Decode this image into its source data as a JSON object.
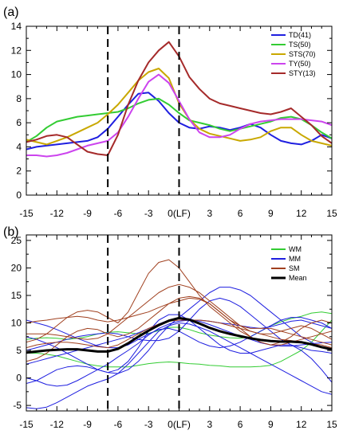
{
  "chart_data": [
    {
      "type": "line",
      "panel_label": "(a)",
      "x": [
        -15,
        -14,
        -13,
        -12,
        -11,
        -10,
        -9,
        -8,
        -7,
        -6,
        -5,
        -4,
        -3,
        -2,
        -1,
        0,
        1,
        2,
        3,
        4,
        5,
        6,
        7,
        8,
        9,
        10,
        11,
        12,
        13,
        14,
        15
      ],
      "xticks": [
        -15,
        -12,
        -9,
        -6,
        -3,
        0,
        3,
        6,
        9,
        12,
        15
      ],
      "xtick_labels": [
        "-15",
        "-12",
        "-9",
        "-6",
        "-3",
        "0(LF)",
        "3",
        "6",
        "9",
        "12",
        "15"
      ],
      "xlim": [
        -15,
        15
      ],
      "ylim": [
        0,
        14
      ],
      "yticks": [
        0,
        2,
        4,
        6,
        8,
        10,
        12,
        14
      ],
      "ytick_labels": [
        "0",
        "2",
        "4",
        "6",
        "8",
        "10",
        "12",
        "14"
      ],
      "vlines": [
        -7,
        0
      ],
      "legend_position": "top-right",
      "series": [
        {
          "name": "TD(41)",
          "color": "#1f1fe0",
          "width": 2,
          "values": [
            3.8,
            4.0,
            4.1,
            4.2,
            4.3,
            4.4,
            4.5,
            4.8,
            5.5,
            6.5,
            7.5,
            8.4,
            8.5,
            7.8,
            6.8,
            6.0,
            5.6,
            5.5,
            5.7,
            5.6,
            5.4,
            5.6,
            5.9,
            5.6,
            5.0,
            4.5,
            4.3,
            4.2,
            4.5,
            5.0,
            4.7
          ]
        },
        {
          "name": "TS(50)",
          "color": "#33cc33",
          "width": 2,
          "values": [
            4.4,
            4.9,
            5.6,
            6.1,
            6.3,
            6.5,
            6.6,
            6.7,
            6.8,
            6.9,
            7.2,
            7.6,
            7.9,
            8.0,
            7.5,
            6.8,
            6.2,
            6.0,
            5.8,
            5.5,
            5.3,
            5.5,
            5.7,
            5.9,
            6.1,
            6.4,
            6.5,
            6.3,
            5.8,
            5.2,
            4.7
          ]
        },
        {
          "name": "STS(70)",
          "color": "#c9a800",
          "width": 2,
          "values": [
            4.6,
            4.4,
            4.2,
            4.5,
            4.8,
            5.2,
            5.6,
            6.0,
            6.7,
            7.5,
            8.5,
            9.5,
            10.2,
            10.5,
            9.7,
            7.6,
            6.3,
            5.5,
            5.1,
            4.9,
            4.7,
            4.5,
            4.6,
            4.8,
            5.3,
            5.6,
            5.6,
            5.0,
            4.5,
            4.3,
            4.1
          ]
        },
        {
          "name": "TY(50)",
          "color": "#cc44ee",
          "width": 2,
          "values": [
            3.3,
            3.3,
            3.2,
            3.3,
            3.5,
            3.8,
            4.1,
            4.3,
            4.5,
            5.2,
            6.5,
            8.0,
            9.4,
            10.0,
            9.3,
            7.8,
            6.3,
            5.2,
            4.8,
            4.8,
            5.0,
            5.5,
            5.9,
            6.1,
            6.2,
            6.3,
            6.3,
            6.3,
            6.2,
            6.1,
            5.8
          ]
        },
        {
          "name": "STY(13)",
          "color": "#a52a2a",
          "width": 2,
          "values": [
            4.4,
            4.6,
            4.9,
            5.0,
            4.8,
            4.2,
            3.6,
            3.4,
            3.3,
            5.0,
            7.5,
            9.5,
            11.0,
            12.0,
            12.7,
            11.5,
            9.8,
            8.8,
            8.0,
            7.6,
            7.4,
            7.2,
            7.0,
            6.8,
            6.7,
            6.9,
            7.2,
            6.5,
            5.8,
            4.9,
            4.3
          ]
        }
      ]
    },
    {
      "type": "line",
      "panel_label": "(b)",
      "x": [
        -15,
        -14,
        -13,
        -12,
        -11,
        -10,
        -9,
        -8,
        -7,
        -6,
        -5,
        -4,
        -3,
        -2,
        -1,
        0,
        1,
        2,
        3,
        4,
        5,
        6,
        7,
        8,
        9,
        10,
        11,
        12,
        13,
        14,
        15
      ],
      "xticks": [
        -15,
        -12,
        -9,
        -6,
        -3,
        0,
        3,
        6,
        9,
        12,
        15
      ],
      "xtick_labels": [
        "-15",
        "-12",
        "-9",
        "-6",
        "-3",
        "0(LF)",
        "3",
        "6",
        "9",
        "12",
        "15"
      ],
      "xlim": [
        -15,
        15
      ],
      "ylim": [
        -6,
        26
      ],
      "yticks": [
        -5,
        0,
        5,
        10,
        15,
        20,
        25
      ],
      "ytick_labels": [
        "-5",
        "0",
        "5",
        "10",
        "15",
        "20",
        "25"
      ],
      "vlines": [
        -7,
        0
      ],
      "legend_position": "top-right",
      "legend": [
        {
          "name": "WM",
          "color": "#33cc33"
        },
        {
          "name": "MM",
          "color": "#1f1fe0"
        },
        {
          "name": "SM",
          "color": "#a0401f"
        },
        {
          "name": "Mean",
          "color": "#000000"
        }
      ],
      "series": [
        {
          "group": "WM",
          "color": "#33cc33",
          "width": 1,
          "values": [
            4.5,
            4.5,
            4.3,
            4.0,
            3.5,
            3.0,
            2.5,
            2.2,
            2.0,
            2.0,
            2.0,
            2.3,
            2.6,
            2.8,
            2.9,
            2.8,
            2.6,
            2.5,
            2.3,
            2.2,
            2.0,
            2.0,
            2.0,
            2.1,
            2.3,
            3.0,
            4.0,
            5.0,
            6.5,
            8.5,
            10.5
          ]
        },
        {
          "group": "WM",
          "color": "#33cc33",
          "width": 1,
          "values": [
            7.0,
            7.2,
            7.3,
            7.2,
            7.0,
            7.2,
            7.5,
            8.0,
            8.3,
            8.4,
            8.2,
            8.0,
            8.1,
            8.6,
            9.2,
            9.2,
            8.8,
            8.2,
            7.8,
            7.5,
            7.3,
            7.2,
            7.5,
            8.5,
            9.5,
            10.2,
            10.8,
            11.2,
            11.8,
            12.0,
            11.7
          ]
        },
        {
          "group": "MM",
          "color": "#1f1fe0",
          "width": 1,
          "values": [
            -5.4,
            -5.6,
            -5.3,
            -4.5,
            -3.5,
            -2.5,
            -1.5,
            -0.8,
            -0.2,
            0.8,
            2.5,
            4.5,
            6.5,
            8.5,
            9.5,
            10.0,
            9.8,
            9.2,
            8.5,
            7.5,
            6.5,
            5.5,
            4.5,
            3.5,
            2.5,
            1.5,
            0.5,
            -0.5,
            -1.5,
            -2.5,
            -3.0
          ]
        },
        {
          "group": "MM",
          "color": "#1f1fe0",
          "width": 1,
          "values": [
            0.0,
            -0.5,
            -1.2,
            -1.5,
            -1.3,
            -0.5,
            0.5,
            1.5,
            2.5,
            3.8,
            5.0,
            6.3,
            7.8,
            9.0,
            9.8,
            10.3,
            10.5,
            10.5,
            10.3,
            10.0,
            9.8,
            9.5,
            9.2,
            9.0,
            9.3,
            9.8,
            10.3,
            10.5,
            10.0,
            9.5,
            9.0
          ]
        },
        {
          "group": "MM",
          "color": "#1f1fe0",
          "width": 1,
          "values": [
            7.5,
            7.0,
            6.3,
            5.5,
            4.5,
            3.5,
            2.5,
            1.5,
            1.0,
            0.8,
            1.5,
            3.0,
            5.0,
            7.5,
            9.5,
            11.0,
            12.5,
            14.0,
            15.5,
            16.5,
            16.5,
            16.0,
            15.0,
            13.5,
            12.0,
            10.5,
            9.0,
            7.5,
            6.5,
            5.5,
            5.0
          ]
        },
        {
          "group": "MM",
          "color": "#1f1fe0",
          "width": 1,
          "values": [
            2.5,
            3.0,
            3.5,
            4.0,
            4.5,
            5.0,
            5.5,
            6.0,
            6.5,
            7.0,
            7.5,
            8.2,
            9.0,
            9.8,
            10.5,
            10.8,
            10.7,
            10.3,
            9.7,
            9.0,
            8.3,
            7.6,
            7.0,
            6.4,
            6.0,
            5.8,
            5.8,
            6.0,
            6.2,
            6.4,
            6.5
          ]
        },
        {
          "group": "MM",
          "color": "#1f1fe0",
          "width": 1,
          "values": [
            -1.0,
            -0.5,
            0.5,
            1.5,
            2.0,
            2.2,
            2.0,
            1.5,
            1.0,
            1.5,
            3.0,
            5.5,
            8.5,
            10.5,
            11.5,
            11.5,
            10.5,
            9.0,
            7.5,
            6.0,
            5.0,
            4.5,
            4.5,
            5.0,
            5.5,
            6.0,
            6.0,
            5.0,
            3.5,
            1.5,
            -0.8
          ]
        },
        {
          "group": "MM",
          "color": "#1f1fe0",
          "width": 1,
          "values": [
            5.0,
            5.5,
            6.0,
            6.5,
            7.0,
            7.5,
            7.8,
            8.0,
            8.2,
            8.0,
            7.5,
            7.0,
            6.8,
            6.8,
            7.2,
            8.5,
            10.5,
            12.5,
            14.0,
            14.5,
            14.0,
            13.0,
            11.5,
            10.0,
            8.5,
            7.0,
            6.0,
            5.5,
            5.0,
            4.8,
            4.5
          ]
        },
        {
          "group": "MM",
          "color": "#1f1fe0",
          "width": 1,
          "values": [
            10.5,
            10.0,
            9.5,
            8.8,
            8.0,
            7.2,
            6.5,
            5.8,
            5.5,
            5.5,
            6.0,
            7.0,
            8.0,
            8.8,
            9.0,
            8.5,
            7.5,
            6.5,
            5.8,
            5.5,
            5.8,
            6.5,
            7.5,
            8.5,
            9.5,
            10.5,
            11.0,
            11.0,
            10.5,
            10.0,
            9.0
          ]
        },
        {
          "group": "SM",
          "color": "#a0401f",
          "width": 1,
          "values": [
            6.5,
            7.0,
            8.0,
            9.5,
            11.0,
            12.0,
            12.3,
            12.0,
            11.0,
            10.0,
            12.0,
            15.5,
            19.0,
            21.0,
            21.5,
            20.0,
            17.5,
            15.0,
            13.0,
            11.5,
            10.0,
            8.5,
            7.5,
            6.5,
            6.0,
            6.0,
            6.5,
            7.0,
            7.5,
            8.0,
            8.5
          ]
        },
        {
          "group": "SM",
          "color": "#a0401f",
          "width": 1,
          "values": [
            8.0,
            8.0,
            8.0,
            7.8,
            7.5,
            7.2,
            7.0,
            7.2,
            8.0,
            9.5,
            11.0,
            12.5,
            14.0,
            15.5,
            16.5,
            17.0,
            16.5,
            15.5,
            14.0,
            12.5,
            11.0,
            9.5,
            8.5,
            8.0,
            8.0,
            8.5,
            9.0,
            9.5,
            9.0,
            8.0,
            7.0
          ]
        },
        {
          "group": "SM",
          "color": "#a0401f",
          "width": 1,
          "values": [
            10.0,
            10.3,
            10.5,
            10.8,
            11.0,
            11.2,
            11.0,
            10.5,
            10.2,
            10.5,
            11.0,
            11.5,
            12.0,
            12.8,
            13.5,
            14.0,
            14.5,
            14.3,
            13.5,
            12.0,
            10.5,
            9.0,
            7.5,
            6.5,
            6.0,
            6.5,
            7.5,
            9.0,
            10.0,
            10.5,
            10.0
          ]
        },
        {
          "group": "SM",
          "color": "#a0401f",
          "width": 1,
          "values": [
            3.0,
            3.5,
            4.5,
            6.0,
            7.5,
            8.5,
            9.0,
            8.8,
            8.0,
            7.5,
            8.0,
            9.0,
            10.5,
            12.0,
            13.5,
            14.5,
            14.8,
            14.5,
            13.5,
            12.0,
            10.5,
            9.5,
            9.0,
            9.0,
            9.0,
            8.5,
            8.0,
            7.5,
            7.0,
            6.5,
            6.0
          ]
        },
        {
          "group": "SM",
          "color": "#a0401f",
          "width": 1,
          "values": [
            5.5,
            6.0,
            6.3,
            6.5,
            6.5,
            6.3,
            6.0,
            5.7,
            5.5,
            6.0,
            7.0,
            8.0,
            9.0,
            9.8,
            10.3,
            10.5,
            10.5,
            10.5,
            10.3,
            10.0,
            9.5,
            9.0,
            8.5,
            8.0,
            7.5,
            7.0,
            6.8,
            6.5,
            6.2,
            6.0,
            5.5
          ]
        },
        {
          "group": "Mean",
          "color": "#000000",
          "width": 3,
          "values": [
            4.6,
            4.8,
            5.0,
            5.1,
            5.2,
            5.2,
            5.0,
            4.8,
            4.8,
            5.3,
            6.3,
            7.5,
            8.6,
            9.6,
            10.4,
            10.9,
            10.6,
            9.9,
            9.1,
            8.5,
            8.0,
            7.6,
            7.2,
            6.9,
            6.7,
            6.6,
            6.6,
            6.5,
            6.1,
            5.6,
            5.2
          ]
        }
      ]
    }
  ]
}
